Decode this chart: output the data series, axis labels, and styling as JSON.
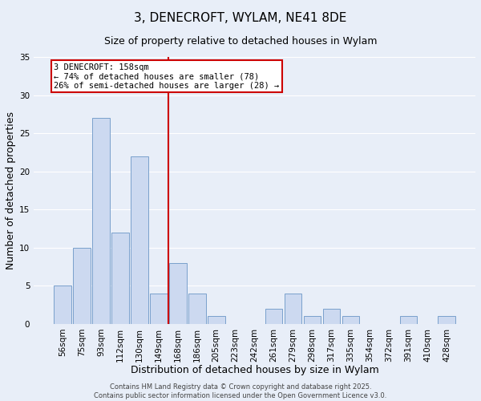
{
  "title": "3, DENECROFT, WYLAM, NE41 8DE",
  "subtitle": "Size of property relative to detached houses in Wylam",
  "xlabel": "Distribution of detached houses by size in Wylam",
  "ylabel": "Number of detached properties",
  "bar_color": "#ccd9f0",
  "bar_edge_color": "#7aa0cc",
  "background_color": "#e8eef8",
  "grid_color": "#ffffff",
  "categories": [
    "56sqm",
    "75sqm",
    "93sqm",
    "112sqm",
    "130sqm",
    "149sqm",
    "168sqm",
    "186sqm",
    "205sqm",
    "223sqm",
    "242sqm",
    "261sqm",
    "279sqm",
    "298sqm",
    "317sqm",
    "335sqm",
    "354sqm",
    "372sqm",
    "391sqm",
    "410sqm",
    "428sqm"
  ],
  "values": [
    5,
    10,
    27,
    12,
    22,
    4,
    8,
    4,
    1,
    0,
    0,
    2,
    4,
    1,
    2,
    1,
    0,
    0,
    1,
    0,
    1
  ],
  "ylim": [
    0,
    35
  ],
  "yticks": [
    0,
    5,
    10,
    15,
    20,
    25,
    30,
    35
  ],
  "property_line_index": 5.5,
  "property_label": "3 DENECROFT: 158sqm",
  "annotation_line1": "← 74% of detached houses are smaller (78)",
  "annotation_line2": "26% of semi-detached houses are larger (28) →",
  "footer_line1": "Contains HM Land Registry data © Crown copyright and database right 2025.",
  "footer_line2": "Contains public sector information licensed under the Open Government Licence v3.0.",
  "annotation_box_color": "#ffffff",
  "annotation_box_edge": "#cc0000",
  "property_line_color": "#cc0000",
  "title_fontsize": 11,
  "subtitle_fontsize": 9,
  "annotation_fontsize": 7.5,
  "footer_fontsize": 6,
  "tick_fontsize": 7.5,
  "axis_label_fontsize": 9
}
